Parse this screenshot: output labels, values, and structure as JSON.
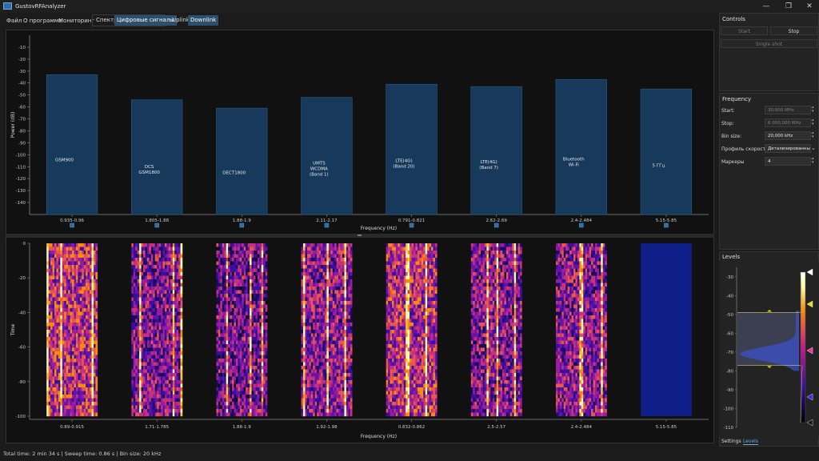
{
  "window": {
    "title": "GustovRFAnalyzer",
    "minimize": "—",
    "maximize": "❐",
    "close": "✕"
  },
  "menu": {
    "file": "Файл",
    "about": "О программе",
    "monitoring": "Мониторинг"
  },
  "tabs": {
    "spectrum": "Спектр",
    "digital": "Цифровые сигналы",
    "uplink": "Uplink",
    "downlink": "Downlink"
  },
  "chart_data": [
    {
      "type": "bar",
      "ylabel": "Power (dB)",
      "xlabel": "Frequency (Hz)",
      "ylim": [
        -150,
        0
      ],
      "yticks": [
        -10,
        -20,
        -30,
        -40,
        -50,
        -60,
        -70,
        -80,
        -90,
        -100,
        -110,
        -120,
        -130,
        -140
      ],
      "categories": [
        "0.935-0.96",
        "1.805-1.88",
        "1.88-1.9",
        "2.11-2.17",
        "0.791-0.821",
        "2.62-2.69",
        "2.4-2.484",
        "5.15-5.85"
      ],
      "values": [
        -33,
        -54,
        -61,
        -52,
        -41,
        -43,
        -37,
        -45
      ],
      "band_labels": [
        [
          "GSM900"
        ],
        [
          "DCS",
          "GSM1800"
        ],
        [
          "DECT1800"
        ],
        [
          "UMTS",
          "WCDMA",
          "(Band 1)"
        ],
        [
          "LTE(4G)",
          "(Band 20)"
        ],
        [
          "LTE(4G)",
          "(Band 7)"
        ],
        [
          "Bluetooth",
          "Wi-Fi"
        ],
        [
          "5 ГГц"
        ]
      ],
      "bar_color": "#173a5c"
    },
    {
      "type": "heatmap",
      "ylabel": "Time",
      "xlabel": "Frequency (Hz)",
      "ylim": [
        -100,
        0
      ],
      "yticks": [
        0,
        -20,
        -40,
        -60,
        -80,
        -100
      ],
      "categories": [
        "0.89-0.915",
        "1.71-1.785",
        "1.88-1.9",
        "1.92-1.98",
        "0.832-0.862",
        "2.5-2.57",
        "2.4-2.484",
        "5.15-5.85"
      ],
      "intensity": [
        0.7,
        0.3,
        0.2,
        0.4,
        0.65,
        0.35,
        0.35,
        0.0
      ]
    }
  ],
  "controls": {
    "title": "Controls",
    "start": "Start",
    "stop": "Stop",
    "single_shot": "Single shot"
  },
  "frequency": {
    "title": "Frequency",
    "start_label": "Start:",
    "start_value": "30,000 MHz",
    "stop_label": "Stop:",
    "stop_value": "6 000,000 MHz",
    "bin_label": "Bin size:",
    "bin_value": "20,000 kHz",
    "profile_label": "Профиль скорости",
    "profile_value": "Детализированный",
    "markers_label": "Маркеры",
    "markers_value": "4"
  },
  "levels": {
    "title": "Levels",
    "yticks": [
      -30,
      -40,
      -50,
      -60,
      -70,
      -80,
      -90,
      -100,
      -110
    ],
    "ylim": [
      -110,
      -25
    ],
    "low": -77,
    "high": -49,
    "tab_settings": "Settings",
    "tab_levels": "Levels"
  },
  "status": "Total time: 2 min 34 s | Sweep time: 0.86 s | Bin size: 20 kHz"
}
